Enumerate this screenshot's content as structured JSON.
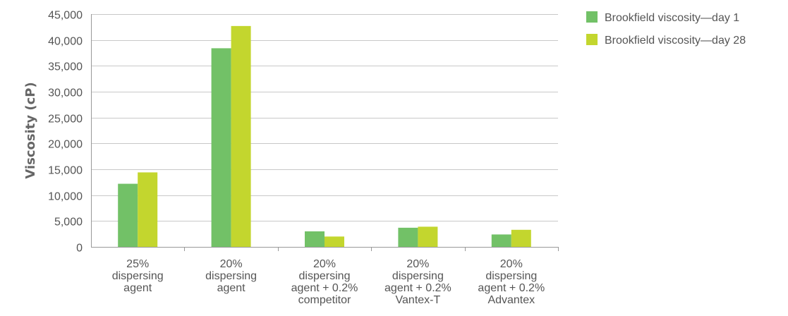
{
  "chart_data": {
    "type": "bar",
    "title": "",
    "xlabel": "",
    "ylabel": "Viscosity (cP)",
    "ylim": [
      0,
      45000
    ],
    "yticks": [
      0,
      5000,
      10000,
      15000,
      20000,
      25000,
      30000,
      35000,
      40000,
      45000
    ],
    "ytick_labels": [
      "0",
      "5,000",
      "10,000",
      "15,000",
      "20,000",
      "25,000",
      "30,000",
      "35,000",
      "40,000",
      "45,000"
    ],
    "grid": true,
    "legend_position": "top-right",
    "categories": [
      [
        "25%",
        "dispersing",
        "agent"
      ],
      [
        "20%",
        "dispersing",
        "agent"
      ],
      [
        "20%",
        "dispersing",
        "agent + 0.2%",
        "competitor"
      ],
      [
        "20%",
        "dispersing",
        "agent + 0.2%",
        "Vantex-T"
      ],
      [
        "20%",
        "dispersing",
        "agent + 0.2%",
        "Advantex"
      ]
    ],
    "series": [
      {
        "name": "Brookfield viscosity—day 1",
        "color": "#72c167",
        "values": [
          12200,
          38400,
          3000,
          3700,
          2400
        ]
      },
      {
        "name": "Brookfield viscosity—day 28",
        "color": "#c3d62e",
        "values": [
          14400,
          42700,
          2000,
          3900,
          3300
        ]
      }
    ]
  }
}
